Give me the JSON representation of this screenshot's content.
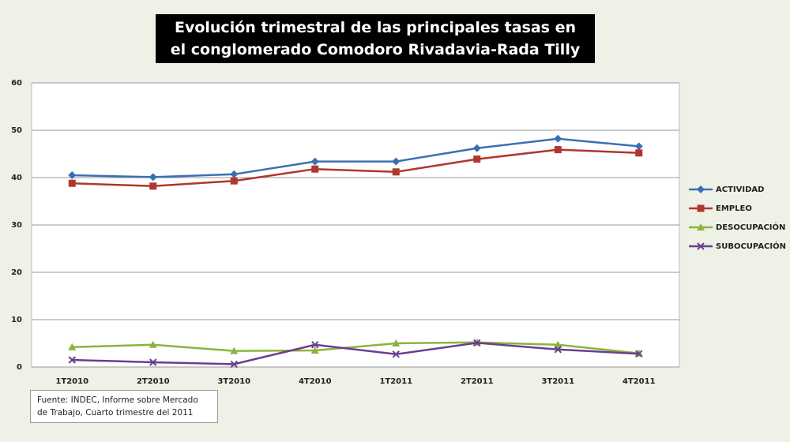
{
  "chart_data": {
    "type": "line",
    "title": "Evolución trimestral de las principales tasas en el conglomerado Comodoro Rivadavia-Rada Tilly",
    "categories": [
      "1T2010",
      "2T2010",
      "3T2010",
      "4T2010",
      "1T2011",
      "2T2011",
      "3T2011",
      "4T2011"
    ],
    "series": [
      {
        "name": "ACTIVIDAD",
        "color": "#3b6fb3",
        "marker": "diamond",
        "values": [
          40.5,
          40.1,
          40.7,
          43.4,
          43.4,
          46.2,
          48.2,
          46.6
        ]
      },
      {
        "name": "EMPLEO",
        "color": "#b2352f",
        "marker": "square",
        "values": [
          38.8,
          38.2,
          39.3,
          41.8,
          41.2,
          43.9,
          45.9,
          45.2
        ]
      },
      {
        "name": "DESOCUPACIÓN",
        "color": "#8cb33c",
        "marker": "triangle",
        "values": [
          4.2,
          4.7,
          3.4,
          3.5,
          5.0,
          5.2,
          4.7,
          2.9
        ]
      },
      {
        "name": "SUBOCUPACIÓN",
        "color": "#6a3f8f",
        "marker": "x",
        "values": [
          1.5,
          1.0,
          0.6,
          4.7,
          2.7,
          5.1,
          3.7,
          2.8
        ]
      }
    ],
    "ylim": [
      0,
      60
    ],
    "yticks": [
      0,
      10,
      20,
      30,
      40,
      50,
      60
    ],
    "grid": true,
    "legend": "right",
    "source": "Fuente: INDEC, Informe sobre Mercado de Trabajo, Cuarto trimestre del 2011"
  }
}
